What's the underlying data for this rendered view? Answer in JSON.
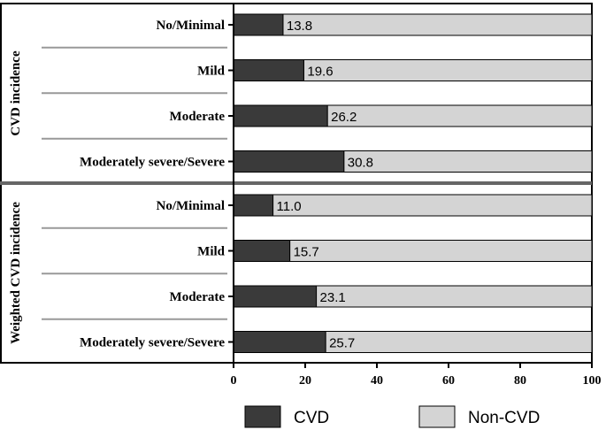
{
  "chart_data": {
    "type": "bar",
    "orientation": "horizontal",
    "stacked": true,
    "xlim": [
      0,
      100
    ],
    "xticks": [
      0,
      20,
      40,
      60,
      80,
      100
    ],
    "groups": [
      {
        "label": "CVD incidence",
        "categories": [
          "No/Minimal",
          "Mild",
          "Moderate",
          "Moderately severe/Severe"
        ],
        "cvd": [
          13.8,
          19.6,
          26.2,
          30.8
        ],
        "cvd_labels": [
          "13.8",
          "19.6",
          "26.2",
          "30.8"
        ]
      },
      {
        "label": "Weighted CVD incidence",
        "categories": [
          "No/Minimal",
          "Mild",
          "Moderate",
          "Moderately severe/Severe"
        ],
        "cvd": [
          11.0,
          15.7,
          23.1,
          25.7
        ],
        "cvd_labels": [
          "11.0",
          "15.7",
          "23.1",
          "25.7"
        ]
      }
    ],
    "series": [
      {
        "name": "CVD",
        "color": "#3a3a3a"
      },
      {
        "name": "Non-CVD",
        "color": "#d4d4d4"
      }
    ]
  }
}
